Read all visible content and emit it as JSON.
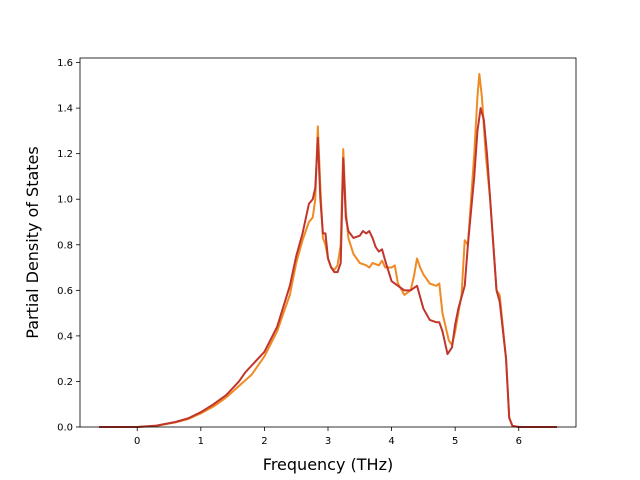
{
  "chart_data": {
    "type": "line",
    "title": "",
    "xlabel": "Frequency (THz)",
    "ylabel": "Partial Density of States",
    "xlim": [
      -0.9,
      6.9
    ],
    "ylim": [
      0.0,
      1.62
    ],
    "xticks": [
      0,
      1,
      2,
      3,
      4,
      5,
      6
    ],
    "yticks": [
      0.0,
      0.2,
      0.4,
      0.6,
      0.8,
      1.0,
      1.2,
      1.4,
      1.6
    ],
    "xtick_labels": [
      "0",
      "1",
      "2",
      "3",
      "4",
      "5",
      "6"
    ],
    "ytick_labels": [
      "0.0",
      "0.2",
      "0.4",
      "0.6",
      "0.8",
      "1.0",
      "1.2",
      "1.4",
      "1.6"
    ],
    "grid": false,
    "legend": false,
    "series": [
      {
        "color": "#f08a24",
        "points": [
          [
            -0.6,
            0.0
          ],
          [
            0.0,
            0.0
          ],
          [
            0.3,
            0.005
          ],
          [
            0.6,
            0.02
          ],
          [
            0.8,
            0.035
          ],
          [
            1.0,
            0.06
          ],
          [
            1.2,
            0.09
          ],
          [
            1.4,
            0.13
          ],
          [
            1.6,
            0.18
          ],
          [
            1.8,
            0.23
          ],
          [
            2.0,
            0.31
          ],
          [
            2.2,
            0.42
          ],
          [
            2.4,
            0.58
          ],
          [
            2.5,
            0.72
          ],
          [
            2.6,
            0.82
          ],
          [
            2.7,
            0.9
          ],
          [
            2.76,
            0.92
          ],
          [
            2.8,
            1.0
          ],
          [
            2.84,
            1.32
          ],
          [
            2.88,
            1.05
          ],
          [
            2.92,
            0.83
          ],
          [
            2.96,
            0.8
          ],
          [
            3.0,
            0.74
          ],
          [
            3.05,
            0.7
          ],
          [
            3.1,
            0.69
          ],
          [
            3.15,
            0.71
          ],
          [
            3.2,
            0.8
          ],
          [
            3.24,
            1.22
          ],
          [
            3.28,
            0.95
          ],
          [
            3.32,
            0.83
          ],
          [
            3.4,
            0.76
          ],
          [
            3.5,
            0.72
          ],
          [
            3.6,
            0.71
          ],
          [
            3.65,
            0.7
          ],
          [
            3.7,
            0.72
          ],
          [
            3.8,
            0.71
          ],
          [
            3.85,
            0.73
          ],
          [
            3.9,
            0.7
          ],
          [
            4.0,
            0.7
          ],
          [
            4.05,
            0.71
          ],
          [
            4.1,
            0.63
          ],
          [
            4.2,
            0.58
          ],
          [
            4.3,
            0.6
          ],
          [
            4.35,
            0.66
          ],
          [
            4.4,
            0.74
          ],
          [
            4.45,
            0.7
          ],
          [
            4.5,
            0.67
          ],
          [
            4.6,
            0.63
          ],
          [
            4.7,
            0.62
          ],
          [
            4.75,
            0.63
          ],
          [
            4.8,
            0.5
          ],
          [
            4.9,
            0.38
          ],
          [
            4.95,
            0.36
          ],
          [
            5.0,
            0.42
          ],
          [
            5.1,
            0.58
          ],
          [
            5.15,
            0.82
          ],
          [
            5.2,
            0.8
          ],
          [
            5.3,
            1.2
          ],
          [
            5.35,
            1.45
          ],
          [
            5.38,
            1.55
          ],
          [
            5.42,
            1.45
          ],
          [
            5.48,
            1.2
          ],
          [
            5.55,
            1.0
          ],
          [
            5.6,
            0.8
          ],
          [
            5.65,
            0.6
          ],
          [
            5.7,
            0.58
          ],
          [
            5.8,
            0.3
          ],
          [
            5.85,
            0.04
          ],
          [
            5.9,
            0.005
          ],
          [
            6.0,
            0.0
          ],
          [
            6.6,
            0.0
          ]
        ]
      },
      {
        "color": "#c0362c",
        "points": [
          [
            -0.6,
            0.0
          ],
          [
            0.0,
            0.0
          ],
          [
            0.3,
            0.006
          ],
          [
            0.6,
            0.022
          ],
          [
            0.8,
            0.038
          ],
          [
            1.0,
            0.065
          ],
          [
            1.2,
            0.1
          ],
          [
            1.4,
            0.14
          ],
          [
            1.6,
            0.2
          ],
          [
            1.7,
            0.24
          ],
          [
            1.8,
            0.27
          ],
          [
            2.0,
            0.33
          ],
          [
            2.2,
            0.44
          ],
          [
            2.4,
            0.62
          ],
          [
            2.5,
            0.75
          ],
          [
            2.6,
            0.85
          ],
          [
            2.7,
            0.98
          ],
          [
            2.76,
            1.0
          ],
          [
            2.8,
            1.05
          ],
          [
            2.84,
            1.27
          ],
          [
            2.88,
            1.0
          ],
          [
            2.92,
            0.85
          ],
          [
            2.96,
            0.85
          ],
          [
            3.0,
            0.74
          ],
          [
            3.05,
            0.7
          ],
          [
            3.1,
            0.68
          ],
          [
            3.15,
            0.68
          ],
          [
            3.2,
            0.72
          ],
          [
            3.24,
            1.18
          ],
          [
            3.28,
            0.92
          ],
          [
            3.32,
            0.86
          ],
          [
            3.4,
            0.83
          ],
          [
            3.5,
            0.84
          ],
          [
            3.55,
            0.86
          ],
          [
            3.6,
            0.85
          ],
          [
            3.65,
            0.86
          ],
          [
            3.7,
            0.83
          ],
          [
            3.75,
            0.79
          ],
          [
            3.8,
            0.77
          ],
          [
            3.85,
            0.78
          ],
          [
            3.9,
            0.73
          ],
          [
            4.0,
            0.64
          ],
          [
            4.1,
            0.62
          ],
          [
            4.2,
            0.6
          ],
          [
            4.3,
            0.6
          ],
          [
            4.4,
            0.62
          ],
          [
            4.45,
            0.57
          ],
          [
            4.5,
            0.52
          ],
          [
            4.6,
            0.47
          ],
          [
            4.7,
            0.46
          ],
          [
            4.75,
            0.46
          ],
          [
            4.8,
            0.42
          ],
          [
            4.88,
            0.32
          ],
          [
            4.95,
            0.35
          ],
          [
            5.0,
            0.45
          ],
          [
            5.05,
            0.52
          ],
          [
            5.15,
            0.62
          ],
          [
            5.2,
            0.8
          ],
          [
            5.3,
            1.1
          ],
          [
            5.35,
            1.3
          ],
          [
            5.4,
            1.4
          ],
          [
            5.45,
            1.35
          ],
          [
            5.5,
            1.2
          ],
          [
            5.55,
            1.0
          ],
          [
            5.6,
            0.8
          ],
          [
            5.65,
            0.6
          ],
          [
            5.7,
            0.55
          ],
          [
            5.8,
            0.3
          ],
          [
            5.85,
            0.04
          ],
          [
            5.9,
            0.005
          ],
          [
            6.0,
            0.0
          ],
          [
            6.6,
            0.0
          ]
        ]
      }
    ]
  }
}
